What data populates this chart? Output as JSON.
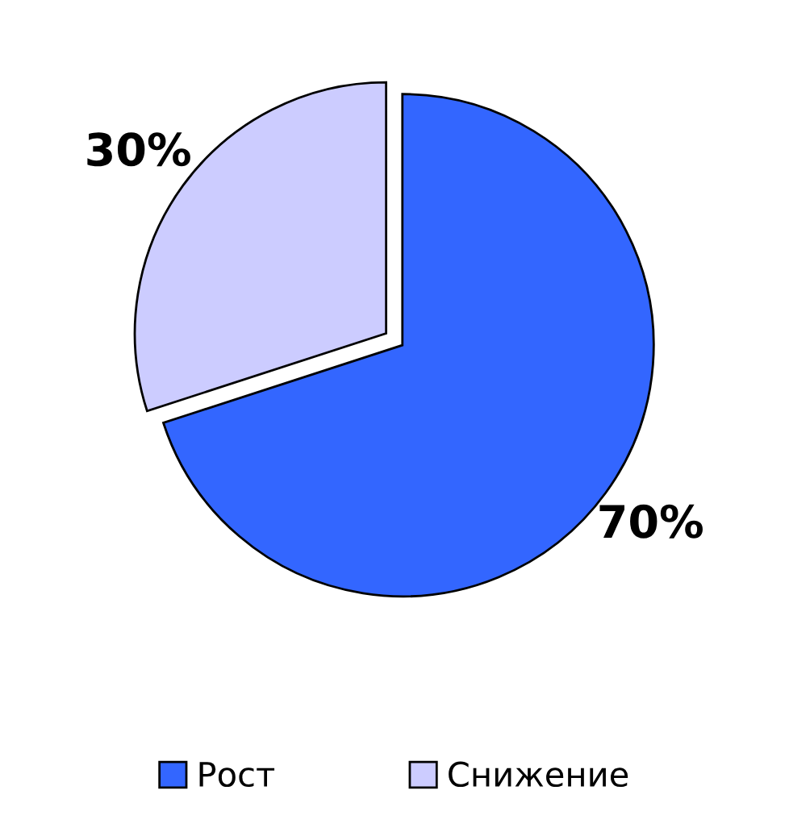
{
  "chart_data": {
    "type": "pie",
    "categories": [
      "Рост",
      "Снижение"
    ],
    "values": [
      70,
      30
    ],
    "colors": [
      "#3366ff",
      "#ccccff"
    ],
    "value_labels": [
      "70%",
      "30%"
    ],
    "legend": "bottom"
  }
}
